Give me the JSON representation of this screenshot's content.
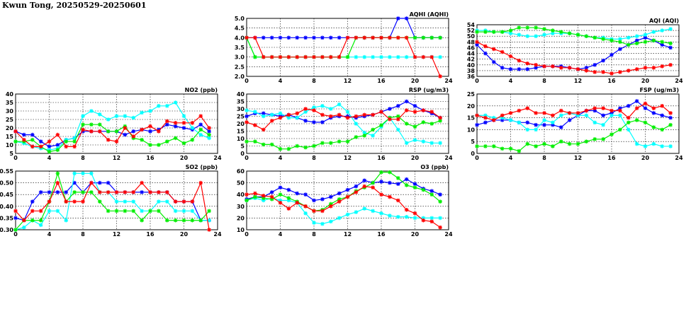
{
  "page": {
    "title": "Kwun Tong, 20250529-20250601"
  },
  "colors": {
    "series": [
      "#0000ff",
      "#00ffff",
      "#00ee00",
      "#ff0000"
    ],
    "grid": "#000000"
  },
  "chart_data": [
    {
      "id": "aqhi",
      "type": "line",
      "title": "AQHI (AQHI)",
      "xlim": [
        0,
        24
      ],
      "xticks": [
        0,
        4,
        8,
        12,
        16,
        20,
        24
      ],
      "ylim": [
        2.0,
        5.0
      ],
      "yticks": [
        "2.0",
        "2.5",
        "3.0",
        "3.5",
        "4.0",
        "4.5",
        "5.0"
      ],
      "grid": true,
      "legend": "none",
      "series": [
        {
          "values": [
            4,
            4,
            4,
            4,
            4,
            4,
            4,
            4,
            4,
            4,
            4,
            4,
            4,
            4,
            4,
            4,
            4,
            4,
            5,
            5,
            4,
            4,
            4,
            4
          ]
        },
        {
          "values": [
            4,
            3,
            3,
            3,
            3,
            3,
            3,
            3,
            3,
            3,
            3,
            3,
            3,
            3,
            3,
            3,
            3,
            3,
            3,
            3,
            3,
            3,
            3,
            3
          ]
        },
        {
          "values": [
            4,
            3,
            3,
            3,
            3,
            3,
            3,
            3,
            3,
            3,
            3,
            3,
            3,
            4,
            4,
            4,
            4,
            4,
            4,
            4,
            4,
            4,
            4,
            4
          ]
        },
        {
          "values": [
            4,
            4,
            3,
            3,
            3,
            3,
            3,
            3,
            3,
            3,
            3,
            3,
            4,
            4,
            4,
            4,
            4,
            4,
            4,
            4,
            3,
            3,
            3,
            2
          ]
        }
      ]
    },
    {
      "id": "aqi",
      "type": "line",
      "title": "AQI (AQI)",
      "xlim": [
        0,
        24
      ],
      "xticks": [
        0,
        4,
        8,
        12,
        16,
        20,
        24
      ],
      "ylim": [
        36,
        54
      ],
      "yticks": [
        "36",
        "38",
        "40",
        "42",
        "44",
        "46",
        "48",
        "50",
        "52",
        "54"
      ],
      "grid": true,
      "legend": "none",
      "series": [
        {
          "values": [
            47,
            44,
            41,
            39,
            38.5,
            38.5,
            38.5,
            39,
            39.5,
            39.5,
            39.5,
            39,
            38.5,
            39,
            40,
            41.5,
            43.5,
            45.5,
            47,
            48.5,
            49.5,
            48.5,
            47,
            46
          ]
        },
        {
          "values": [
            52,
            52,
            51.5,
            51.5,
            51,
            50.5,
            50,
            50,
            50.5,
            51,
            51,
            51,
            50.5,
            50,
            49.5,
            49.5,
            49,
            49,
            49.5,
            50,
            50.5,
            51.5,
            52,
            52.5
          ]
        },
        {
          "values": [
            51.5,
            51.5,
            51.5,
            51.5,
            52,
            53,
            53,
            53,
            52.5,
            52,
            51.5,
            51,
            50.5,
            50,
            49.5,
            49,
            48.5,
            48,
            47,
            47.5,
            48,
            48.5,
            48,
            47.5
          ]
        },
        {
          "values": [
            48,
            46.5,
            45.5,
            44.5,
            43,
            41.5,
            40.5,
            40,
            39.5,
            39.5,
            39,
            39,
            38.5,
            38,
            37.5,
            37.5,
            37,
            37.5,
            38,
            38.5,
            39,
            39,
            39.5,
            40
          ]
        }
      ]
    },
    {
      "id": "no2",
      "type": "line",
      "title": "NO2 (ppb)",
      "xlim": [
        0,
        24
      ],
      "xticks": [
        0,
        4,
        8,
        12,
        16,
        20,
        24
      ],
      "ylim": [
        5,
        40
      ],
      "yticks": [
        "5",
        "10",
        "15",
        "20",
        "25",
        "30",
        "35",
        "40"
      ],
      "grid": true,
      "legend": "none",
      "series": [
        {
          "values": [
            18,
            16,
            16,
            12,
            9,
            10,
            13,
            14,
            18,
            18,
            18,
            18,
            18,
            16,
            18,
            19,
            18,
            19,
            22,
            21,
            20,
            19,
            22,
            18
          ]
        },
        {
          "values": [
            12,
            11,
            9,
            8,
            7,
            8,
            13,
            14,
            27,
            30,
            28,
            25,
            27,
            27,
            26,
            29,
            30,
            33,
            33,
            35,
            27,
            20,
            16,
            14
          ]
        },
        {
          "values": [
            12,
            12,
            13,
            9,
            6,
            7,
            12,
            12,
            22,
            22,
            22,
            18,
            18,
            21,
            14,
            13,
            10,
            10,
            12,
            14,
            11,
            13,
            19,
            16
          ]
        },
        {
          "values": [
            18,
            13,
            9,
            9,
            12,
            16,
            9,
            9,
            19,
            18,
            18,
            13,
            12,
            20,
            15,
            19,
            21,
            18,
            24,
            23,
            23,
            23,
            27,
            20
          ]
        }
      ]
    },
    {
      "id": "rsp",
      "type": "line",
      "title": "RSP (ug/m3)",
      "xlim": [
        0,
        24
      ],
      "xticks": [
        0,
        4,
        8,
        12,
        16,
        20,
        24
      ],
      "ylim": [
        0,
        40
      ],
      "yticks": [
        "0",
        "5",
        "10",
        "15",
        "20",
        "25",
        "30",
        "35",
        "40"
      ],
      "grid": true,
      "legend": "none",
      "series": [
        {
          "values": [
            25,
            27,
            27,
            26,
            25,
            26,
            24,
            22,
            21,
            21,
            24,
            25,
            25,
            24,
            25,
            26,
            28,
            30,
            32,
            35,
            32,
            29,
            27,
            24
          ]
        },
        {
          "values": [
            29,
            28,
            25,
            26,
            27,
            24,
            24,
            28,
            31,
            32,
            30,
            33,
            28,
            20,
            14,
            12,
            18,
            24,
            16,
            7,
            9,
            8,
            7,
            7
          ]
        },
        {
          "values": [
            8,
            8,
            6,
            6,
            3,
            3,
            5,
            4,
            5,
            7,
            7,
            8,
            8,
            11,
            12,
            16,
            19,
            24,
            25,
            20,
            18,
            21,
            20,
            22
          ]
        },
        {
          "values": [
            21,
            19,
            16,
            22,
            24,
            26,
            27,
            30,
            29,
            26,
            25,
            26,
            24,
            25,
            26,
            26,
            28,
            23,
            23,
            29,
            28,
            29,
            28,
            24
          ]
        }
      ]
    },
    {
      "id": "fsp",
      "type": "line",
      "title": "FSP (ug/m3)",
      "xlim": [
        0,
        24
      ],
      "xticks": [
        0,
        4,
        8,
        12,
        16,
        20,
        24
      ],
      "ylim": [
        0,
        25
      ],
      "yticks": [
        "0",
        "5",
        "10",
        "15",
        "20",
        "25"
      ],
      "grid": true,
      "legend": "none",
      "series": [
        {
          "values": [
            12,
            13,
            14,
            14,
            14,
            13,
            13,
            12,
            12,
            12,
            11,
            14,
            16,
            18,
            18,
            16,
            17,
            19,
            20,
            22,
            19,
            17,
            16,
            15
          ]
        },
        {
          "values": [
            16,
            16,
            15,
            15,
            14,
            13,
            10,
            10,
            14,
            13,
            16,
            17,
            16,
            16,
            13,
            12,
            16,
            16,
            10,
            4,
            3,
            4,
            3,
            3
          ]
        },
        {
          "values": [
            3,
            3,
            3,
            2,
            2,
            1,
            4,
            3,
            4,
            3,
            5,
            4,
            4,
            5,
            6,
            6,
            8,
            10,
            13,
            14,
            13,
            11,
            10,
            12
          ]
        },
        {
          "values": [
            16,
            15,
            14,
            16,
            17,
            18,
            19,
            17,
            17,
            16,
            18,
            17,
            17,
            18,
            19,
            19,
            18,
            18,
            15,
            19,
            21,
            19,
            20,
            17
          ]
        }
      ]
    },
    {
      "id": "so2",
      "type": "line",
      "title": "SO2 (ppb)",
      "xlim": [
        0,
        24
      ],
      "xticks": [
        0,
        4,
        8,
        12,
        16,
        20,
        24
      ],
      "ylim": [
        0.3,
        0.55
      ],
      "yticks": [
        "0.30",
        "0.35",
        "0.40",
        "0.45",
        "0.50",
        "0.55"
      ],
      "grid": true,
      "legend": "none",
      "series": [
        {
          "values": [
            0.35,
            0.34,
            0.42,
            0.46,
            0.46,
            0.46,
            0.46,
            0.5,
            0.46,
            0.5,
            0.5,
            0.5,
            0.46,
            0.46,
            0.46,
            0.46,
            0.46,
            0.46,
            0.46,
            0.42,
            0.42,
            0.42,
            0.34,
            0.34
          ]
        },
        {
          "values": [
            0.3,
            0.31,
            0.34,
            0.32,
            0.38,
            0.38,
            0.34,
            0.54,
            0.54,
            0.54,
            0.46,
            0.46,
            0.42,
            0.42,
            0.42,
            0.38,
            0.38,
            0.42,
            0.42,
            0.38,
            0.38,
            0.38,
            0.34,
            0.34
          ]
        },
        {
          "values": [
            0.3,
            0.34,
            0.34,
            0.34,
            0.42,
            0.54,
            0.42,
            0.46,
            0.46,
            0.46,
            0.42,
            0.38,
            0.38,
            0.38,
            0.38,
            0.34,
            0.38,
            0.38,
            0.34,
            0.34,
            0.34,
            0.34,
            0.34,
            0.38
          ]
        },
        {
          "values": [
            0.38,
            0.34,
            0.38,
            0.38,
            0.42,
            0.5,
            0.42,
            0.42,
            0.42,
            0.5,
            0.46,
            0.46,
            0.46,
            0.46,
            0.46,
            0.5,
            0.46,
            0.46,
            0.46,
            0.42,
            0.42,
            0.42,
            0.5,
            0.3
          ]
        }
      ]
    },
    {
      "id": "o3",
      "type": "line",
      "title": "O3 (ppb)",
      "xlim": [
        0,
        24
      ],
      "xticks": [
        0,
        4,
        8,
        12,
        16,
        20,
        24
      ],
      "ylim": [
        10,
        60
      ],
      "yticks": [
        "10",
        "20",
        "30",
        "40",
        "50",
        "60"
      ],
      "grid": true,
      "legend": "none",
      "series": [
        {
          "values": [
            36,
            38,
            38,
            42,
            46,
            44,
            41,
            40,
            35,
            36,
            38,
            41,
            44,
            47,
            52,
            50,
            51,
            50,
            49,
            53,
            49,
            45,
            43,
            40
          ]
        },
        {
          "values": [
            35,
            37,
            35,
            37,
            35,
            35,
            33,
            24,
            16,
            15,
            17,
            20,
            23,
            25,
            28,
            26,
            24,
            22,
            21,
            21,
            20,
            20,
            20,
            20
          ]
        },
        {
          "values": [
            35,
            38,
            37,
            36,
            40,
            37,
            34,
            30,
            26,
            27,
            32,
            36,
            38,
            43,
            46,
            50,
            59,
            59,
            54,
            48,
            46,
            44,
            40,
            34
          ]
        },
        {
          "values": [
            40,
            41,
            39,
            38,
            33,
            28,
            33,
            30,
            26,
            26,
            30,
            34,
            38,
            42,
            47,
            46,
            40,
            38,
            35,
            27,
            24,
            18,
            17,
            12
          ]
        }
      ]
    }
  ]
}
